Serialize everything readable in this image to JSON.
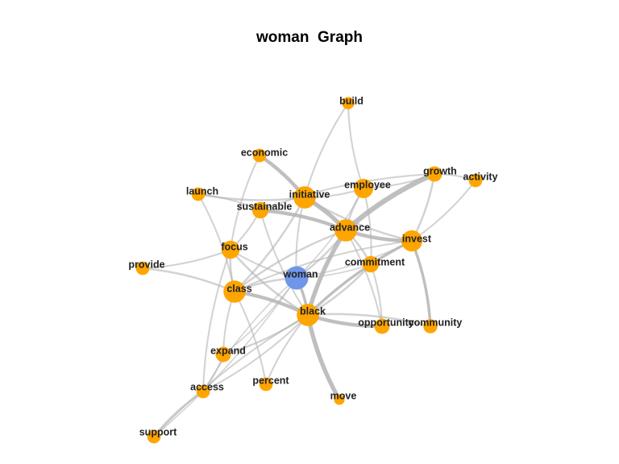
{
  "title": "woman  Graph",
  "colors": {
    "center": "#6f96e8",
    "node": "#ffa500",
    "edge": "#b4b4b4"
  },
  "nodes": [
    {
      "id": "woman",
      "label": "woman",
      "weight": 3.2,
      "center": true
    },
    {
      "id": "advance",
      "label": "advance",
      "weight": 3
    },
    {
      "id": "black",
      "label": "black",
      "weight": 3
    },
    {
      "id": "class",
      "label": "class",
      "weight": 3
    },
    {
      "id": "initiative",
      "label": "initiative",
      "weight": 3
    },
    {
      "id": "invest",
      "label": "invest",
      "weight": 2.8
    },
    {
      "id": "employee",
      "label": "employee",
      "weight": 2.5
    },
    {
      "id": "focus",
      "label": "focus",
      "weight": 2.3
    },
    {
      "id": "commitment",
      "label": "commitment",
      "weight": 2
    },
    {
      "id": "sustainable",
      "label": "sustainable",
      "weight": 2
    },
    {
      "id": "growth",
      "label": "growth",
      "weight": 1.8
    },
    {
      "id": "expand",
      "label": "expand",
      "weight": 1.8
    },
    {
      "id": "opportunity",
      "label": "opportunity",
      "weight": 1.8
    },
    {
      "id": "community",
      "label": "community",
      "weight": 1.6
    },
    {
      "id": "economic",
      "label": "economic",
      "weight": 1.5
    },
    {
      "id": "activity",
      "label": "activity",
      "weight": 1.5
    },
    {
      "id": "launch",
      "label": "launch",
      "weight": 1.5
    },
    {
      "id": "provide",
      "label": "provide",
      "weight": 1.5
    },
    {
      "id": "percent",
      "label": "percent",
      "weight": 1.5
    },
    {
      "id": "access",
      "label": "access",
      "weight": 1.5
    },
    {
      "id": "support",
      "label": "support",
      "weight": 1.5
    },
    {
      "id": "build",
      "label": "build",
      "weight": 1.3
    },
    {
      "id": "move",
      "label": "move",
      "weight": 1
    }
  ],
  "edges": [
    {
      "source": "woman",
      "target": "advance",
      "weight": 2
    },
    {
      "source": "woman",
      "target": "black",
      "weight": 3
    },
    {
      "source": "woman",
      "target": "class",
      "weight": 2
    },
    {
      "source": "woman",
      "target": "initiative",
      "weight": 1.5
    },
    {
      "source": "woman",
      "target": "invest",
      "weight": 1
    },
    {
      "source": "woman",
      "target": "focus",
      "weight": 1.5
    },
    {
      "source": "woman",
      "target": "commitment",
      "weight": 1
    },
    {
      "source": "woman",
      "target": "expand",
      "weight": 1
    },
    {
      "source": "woman",
      "target": "access",
      "weight": 1
    },
    {
      "source": "woman",
      "target": "support",
      "weight": 1
    },
    {
      "source": "woman",
      "target": "employee",
      "weight": 1
    },
    {
      "source": "black",
      "target": "advance",
      "weight": 5
    },
    {
      "source": "black",
      "target": "class",
      "weight": 4
    },
    {
      "source": "black",
      "target": "invest",
      "weight": 3
    },
    {
      "source": "black",
      "target": "opportunity",
      "weight": 4
    },
    {
      "source": "black",
      "target": "community",
      "weight": 2
    },
    {
      "source": "black",
      "target": "move",
      "weight": 5
    },
    {
      "source": "black",
      "target": "expand",
      "weight": 2
    },
    {
      "source": "black",
      "target": "percent",
      "weight": 1.5
    },
    {
      "source": "black",
      "target": "focus",
      "weight": 2
    },
    {
      "source": "black",
      "target": "commitment",
      "weight": 2
    },
    {
      "source": "black",
      "target": "access",
      "weight": 1.5
    },
    {
      "source": "black",
      "target": "support",
      "weight": 1.5
    },
    {
      "source": "black",
      "target": "sustainable",
      "weight": 1.5
    },
    {
      "source": "advance",
      "target": "initiative",
      "weight": 5
    },
    {
      "source": "advance",
      "target": "growth",
      "weight": 6
    },
    {
      "source": "advance",
      "target": "invest",
      "weight": 4
    },
    {
      "source": "advance",
      "target": "employee",
      "weight": 2
    },
    {
      "source": "advance",
      "target": "sustainable",
      "weight": 4
    },
    {
      "source": "advance",
      "target": "commitment",
      "weight": 2
    },
    {
      "source": "advance",
      "target": "class",
      "weight": 2
    },
    {
      "source": "advance",
      "target": "opportunity",
      "weight": 1.5
    },
    {
      "source": "initiative",
      "target": "economic",
      "weight": 4
    },
    {
      "source": "initiative",
      "target": "launch",
      "weight": 2
    },
    {
      "source": "initiative",
      "target": "employee",
      "weight": 1.5
    },
    {
      "source": "initiative",
      "target": "class",
      "weight": 2
    },
    {
      "source": "initiative",
      "target": "invest",
      "weight": 2
    },
    {
      "source": "employee",
      "target": "build",
      "weight": 1.5
    },
    {
      "source": "employee",
      "target": "growth",
      "weight": 1.5
    },
    {
      "source": "employee",
      "target": "commitment",
      "weight": 1.5
    },
    {
      "source": "invest",
      "target": "growth",
      "weight": 2
    },
    {
      "source": "invest",
      "target": "community",
      "weight": 3
    },
    {
      "source": "invest",
      "target": "class",
      "weight": 1.5
    },
    {
      "source": "growth",
      "target": "activity",
      "weight": 1.5
    },
    {
      "source": "growth",
      "target": "sustainable",
      "weight": 1.5
    },
    {
      "source": "activity",
      "target": "invest",
      "weight": 1.5
    },
    {
      "source": "class",
      "target": "provide",
      "weight": 2
    },
    {
      "source": "class",
      "target": "focus",
      "weight": 2
    },
    {
      "source": "class",
      "target": "launch",
      "weight": 1.5
    },
    {
      "source": "class",
      "target": "percent",
      "weight": 1.5
    },
    {
      "source": "class",
      "target": "expand",
      "weight": 1.5
    },
    {
      "source": "focus",
      "target": "provide",
      "weight": 1.5
    },
    {
      "source": "focus",
      "target": "sustainable",
      "weight": 1.5
    },
    {
      "source": "focus",
      "target": "economic",
      "weight": 1.5
    },
    {
      "source": "focus",
      "target": "access",
      "weight": 1.5
    },
    {
      "source": "launch",
      "target": "sustainable",
      "weight": 1.5
    },
    {
      "source": "build",
      "target": "initiative",
      "weight": 1.5
    },
    {
      "source": "expand",
      "target": "access",
      "weight": 1.5
    },
    {
      "source": "access",
      "target": "support",
      "weight": 2
    },
    {
      "source": "commitment",
      "target": "opportunity",
      "weight": 1.5
    }
  ]
}
